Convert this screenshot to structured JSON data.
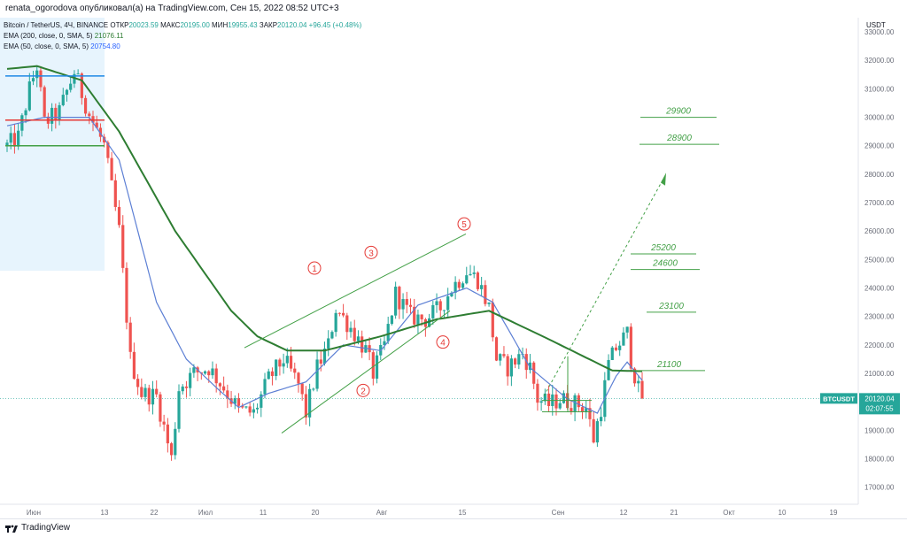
{
  "header": {
    "publish_info": "renata_ogorodova опубликовал(а) на TradingView.com, Сен 15, 2022 08:52 UTC+3"
  },
  "legend": {
    "symbol": "Bitcoin / TetherUS, 4Ч, BINANCE",
    "open_label": "ОТКР",
    "open": "20023.59",
    "high_label": "МАКС",
    "high": "20195.00",
    "low_label": "МИН",
    "low": "19955.43",
    "close_label": "ЗАКР",
    "close": "20120.04",
    "change": "+96.45 (+0.48%)",
    "ema200_label": "EMA (200, close, 0, SMA, 5)",
    "ema200_value": "21076.11",
    "ema50_label": "EMA (50, close, 0, SMA, 5)",
    "ema50_value": "20754.80"
  },
  "footer": {
    "brand": "TradingView"
  },
  "chart_data": {
    "type": "candlestick",
    "currency": "USDT",
    "ylim": [
      16400,
      33500
    ],
    "y_ticks": [
      17000,
      18000,
      19000,
      20000,
      21000,
      22000,
      23000,
      24000,
      25000,
      26000,
      27000,
      28000,
      29000,
      30000,
      31000,
      32000,
      33000
    ],
    "y_tick_labels": [
      "17000.00",
      "18000.00",
      "19000.00",
      "20000.00",
      "21000.00",
      "22000.00",
      "23000.00",
      "24000.00",
      "25000.00",
      "26000.00",
      "27000.00",
      "28000.00",
      "29000.00",
      "30000.00",
      "31000.00",
      "32000.00",
      "33000.00"
    ],
    "x_labels": [
      "Июн",
      "13",
      "22",
      "Июл",
      "11",
      "20",
      "Авг",
      "15",
      "Сен",
      "12",
      "21",
      "Окт",
      "10",
      "19"
    ],
    "price_key_points": [
      [
        0,
        29000
      ],
      [
        3,
        29300
      ],
      [
        6,
        31000
      ],
      [
        8,
        31800
      ],
      [
        10,
        29800
      ],
      [
        14,
        30200
      ],
      [
        18,
        31600
      ],
      [
        22,
        30100
      ],
      [
        26,
        29000
      ],
      [
        30,
        26000
      ],
      [
        33,
        21500
      ],
      [
        36,
        20300
      ],
      [
        40,
        20200
      ],
      [
        44,
        18000
      ],
      [
        46,
        20500
      ],
      [
        50,
        21000
      ],
      [
        54,
        21200
      ],
      [
        58,
        20500
      ],
      [
        62,
        19700
      ],
      [
        66,
        19600
      ],
      [
        70,
        20800
      ],
      [
        74,
        21500
      ],
      [
        78,
        20600
      ],
      [
        80,
        19600
      ],
      [
        83,
        21200
      ],
      [
        86,
        22000
      ],
      [
        88,
        23300
      ],
      [
        92,
        22600
      ],
      [
        96,
        21800
      ],
      [
        98,
        21000
      ],
      [
        101,
        22000
      ],
      [
        104,
        23800
      ],
      [
        108,
        23000
      ],
      [
        112,
        22900
      ],
      [
        116,
        23300
      ],
      [
        119,
        24000
      ],
      [
        123,
        24600
      ],
      [
        126,
        24300
      ],
      [
        129,
        23300
      ],
      [
        131,
        21500
      ],
      [
        134,
        21200
      ],
      [
        138,
        21700
      ],
      [
        140,
        21200
      ],
      [
        142,
        20100
      ],
      [
        145,
        19900
      ],
      [
        148,
        20100
      ],
      [
        151,
        20000
      ],
      [
        153,
        19900
      ],
      [
        155,
        19800
      ],
      [
        157,
        18700
      ],
      [
        159,
        19800
      ],
      [
        161,
        21300
      ],
      [
        163,
        21900
      ],
      [
        166,
        22400
      ],
      [
        167,
        21500
      ],
      [
        169,
        20400
      ],
      [
        170,
        20120
      ]
    ],
    "ema200": [
      [
        0,
        31700
      ],
      [
        8,
        31800
      ],
      [
        20,
        31300
      ],
      [
        30,
        29500
      ],
      [
        45,
        26000
      ],
      [
        60,
        23200
      ],
      [
        67,
        22300
      ],
      [
        75,
        21800
      ],
      [
        85,
        21800
      ],
      [
        100,
        22300
      ],
      [
        115,
        22900
      ],
      [
        129,
        23200
      ],
      [
        145,
        22200
      ],
      [
        162,
        21100
      ],
      [
        170,
        21076
      ]
    ],
    "ema50": [
      [
        0,
        29700
      ],
      [
        10,
        30000
      ],
      [
        22,
        30000
      ],
      [
        30,
        28500
      ],
      [
        40,
        23500
      ],
      [
        48,
        21500
      ],
      [
        56,
        20500
      ],
      [
        62,
        19800
      ],
      [
        70,
        20300
      ],
      [
        80,
        20700
      ],
      [
        90,
        22000
      ],
      [
        100,
        21800
      ],
      [
        110,
        23400
      ],
      [
        123,
        24000
      ],
      [
        130,
        23500
      ],
      [
        140,
        21200
      ],
      [
        150,
        20100
      ],
      [
        158,
        19600
      ],
      [
        163,
        20900
      ],
      [
        166,
        21400
      ],
      [
        170,
        20755
      ]
    ],
    "horizontal_levels": [
      {
        "label": "29900",
        "price": 30000
      },
      {
        "label": "28900",
        "price": 29050
      },
      {
        "label": "25200",
        "price": 25200
      },
      {
        "label": "24600",
        "price": 24650
      },
      {
        "label": "23100",
        "price": 23150
      },
      {
        "label": "21100",
        "price": 21100
      }
    ],
    "waves": [
      {
        "label": "1",
        "price": 24700
      },
      {
        "label": "2",
        "price": 20400
      },
      {
        "label": "3",
        "price": 25250
      },
      {
        "label": "4",
        "price": 22100
      },
      {
        "label": "5",
        "price": 26250
      }
    ],
    "price_axis_marker": {
      "symbol": "BTCUSDT",
      "price": "20120.04",
      "countdown": "02:07:55"
    }
  },
  "colors": {
    "up": "#26a69a",
    "down": "#ef5350",
    "ema200": "#2e7d32",
    "ema50": "#5c7fd4",
    "levels": "#43a047",
    "wave_circle": "#e53935",
    "shade": "#e3f2fd"
  }
}
